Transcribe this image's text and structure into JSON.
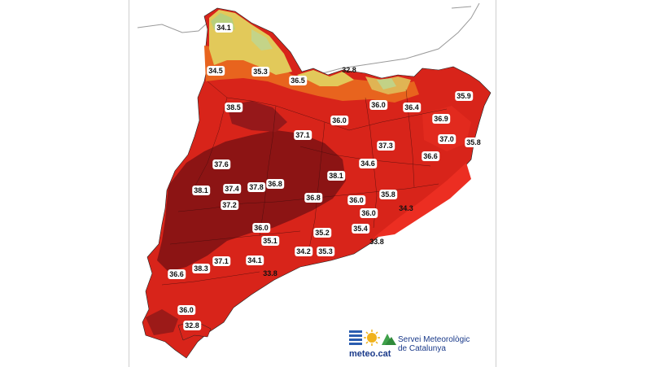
{
  "map": {
    "labels": [
      {
        "id": "t1",
        "value": "34.1"
      },
      {
        "id": "t2",
        "value": "35.3"
      },
      {
        "id": "t3",
        "value": "34.5"
      },
      {
        "id": "t4",
        "value": "36.5"
      },
      {
        "id": "t5",
        "value": "32.8",
        "plain": true
      },
      {
        "id": "t6",
        "value": "38.5"
      },
      {
        "id": "t7",
        "value": "36.0"
      },
      {
        "id": "t8",
        "value": "36.4"
      },
      {
        "id": "t9",
        "value": "35.9"
      },
      {
        "id": "t10",
        "value": "36.0"
      },
      {
        "id": "t11",
        "value": "36.9"
      },
      {
        "id": "t12",
        "value": "37.1"
      },
      {
        "id": "t13",
        "value": "37.0"
      },
      {
        "id": "t14",
        "value": "37.3"
      },
      {
        "id": "t15",
        "value": "35.8"
      },
      {
        "id": "t16",
        "value": "36.6"
      },
      {
        "id": "t17",
        "value": "37.6"
      },
      {
        "id": "t18",
        "value": "34.6"
      },
      {
        "id": "t19",
        "value": "38.1"
      },
      {
        "id": "t20",
        "value": "36.8"
      },
      {
        "id": "t21",
        "value": "37.8"
      },
      {
        "id": "t22",
        "value": "37.4"
      },
      {
        "id": "t23",
        "value": "38.1"
      },
      {
        "id": "t24",
        "value": "35.8"
      },
      {
        "id": "t25",
        "value": "36.8"
      },
      {
        "id": "t26",
        "value": "36.0"
      },
      {
        "id": "t27",
        "value": "37.2"
      },
      {
        "id": "t28",
        "value": "34.3",
        "plain": true
      },
      {
        "id": "t29",
        "value": "36.0"
      },
      {
        "id": "t30",
        "value": "36.0"
      },
      {
        "id": "t31",
        "value": "35.2"
      },
      {
        "id": "t32",
        "value": "35.4"
      },
      {
        "id": "t33",
        "value": "35.1"
      },
      {
        "id": "t34",
        "value": "33.8",
        "plain": true
      },
      {
        "id": "t35",
        "value": "34.2"
      },
      {
        "id": "t36",
        "value": "35.3"
      },
      {
        "id": "t37",
        "value": "34.1"
      },
      {
        "id": "t38",
        "value": "37.1"
      },
      {
        "id": "t39",
        "value": "36.6"
      },
      {
        "id": "t40",
        "value": "38.3"
      },
      {
        "id": "t41",
        "value": "33.8",
        "plain": true
      },
      {
        "id": "t42",
        "value": "36.0"
      },
      {
        "id": "t43",
        "value": "32.8"
      }
    ],
    "colors": {
      "dark": "#8c1414",
      "red": "#d8241a",
      "bright": "#ec2e22",
      "orange": "#e8641e",
      "yellow": "#e2c95a",
      "green": "#b7cf7c"
    }
  },
  "logo": {
    "wordmark": "meteo.cat",
    "service_line1": "Servei Meteorològic",
    "service_line2": "de Catalunya"
  }
}
